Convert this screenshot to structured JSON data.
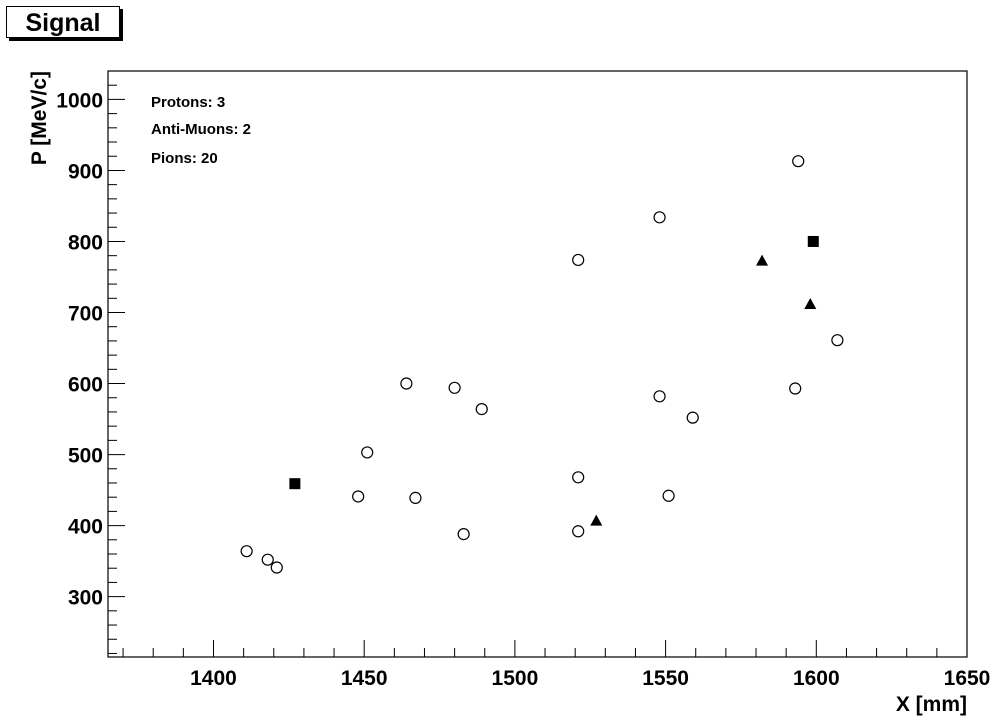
{
  "title": "Signal",
  "legend": [
    {
      "label": "Protons: 3"
    },
    {
      "label": "Anti-Muons: 2"
    },
    {
      "label": "Pions: 20"
    }
  ],
  "chart_data": {
    "type": "scatter",
    "title": "Signal",
    "xlabel": "X [mm]",
    "ylabel": "P [MeV/c]",
    "xlim": [
      1365,
      1650
    ],
    "ylim": [
      215,
      1040
    ],
    "xticks": [
      1400,
      1450,
      1500,
      1550,
      1600,
      1650
    ],
    "yticks": [
      300,
      400,
      500,
      600,
      700,
      800,
      900,
      1000
    ],
    "legend_position": "top-left",
    "grid": false,
    "series": [
      {
        "name": "Protons: 3",
        "marker": "triangle",
        "points": [
          [
            1527,
            407
          ],
          [
            1582,
            773
          ],
          [
            1598,
            712
          ]
        ]
      },
      {
        "name": "Anti-Muons: 2",
        "marker": "square",
        "points": [
          [
            1427,
            459
          ],
          [
            1599,
            800
          ]
        ]
      },
      {
        "name": "Pions: 20",
        "marker": "open-circle",
        "points": [
          [
            1411,
            364
          ],
          [
            1418,
            352
          ],
          [
            1421,
            341
          ],
          [
            1448,
            441
          ],
          [
            1451,
            503
          ],
          [
            1464,
            600
          ],
          [
            1467,
            439
          ],
          [
            1480,
            594
          ],
          [
            1483,
            388
          ],
          [
            1489,
            564
          ],
          [
            1521,
            392
          ],
          [
            1521,
            468
          ],
          [
            1521,
            774
          ],
          [
            1548,
            582
          ],
          [
            1548,
            834
          ],
          [
            1551,
            442
          ],
          [
            1559,
            552
          ],
          [
            1593,
            593
          ],
          [
            1594,
            913
          ],
          [
            1607,
            661
          ]
        ]
      }
    ]
  }
}
